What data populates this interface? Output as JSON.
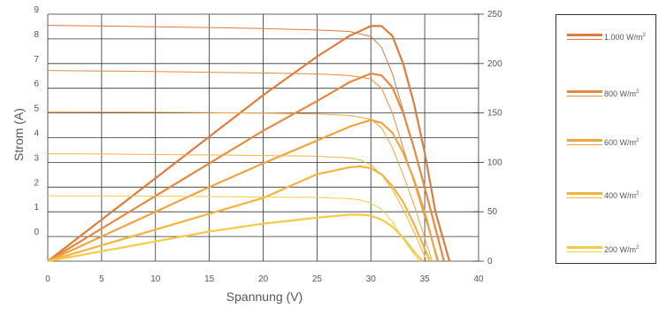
{
  "chart_data": {
    "type": "line",
    "xlabel": "Spannung (V)",
    "ylabel": "Strom (A)",
    "xlim": [
      0,
      40
    ],
    "ylim_left": [
      -1,
      9
    ],
    "ylim_right": [
      0,
      250
    ],
    "x_ticks": [
      "0",
      "5",
      "10",
      "15",
      "20",
      "25",
      "30",
      "35",
      "40"
    ],
    "y_left_ticks": [
      "9",
      "8",
      "7",
      "6",
      "5",
      "4",
      "3",
      "2",
      "1",
      "0"
    ],
    "y_right_ticks": [
      "250",
      "200",
      "150",
      "100",
      "50",
      "0"
    ],
    "grid": true,
    "legend_position": "right",
    "legend_unit_superscript": "2",
    "series": [
      {
        "name": "1.000 W/m",
        "color": "#E07B3A",
        "current_x": [
          0,
          5,
          10,
          15,
          20,
          25,
          28,
          30,
          31,
          32,
          33,
          34,
          35,
          36,
          36.8
        ],
        "current_y": [
          8.55,
          8.52,
          8.49,
          8.46,
          8.42,
          8.36,
          8.3,
          8.1,
          7.65,
          6.6,
          5.1,
          3.6,
          1.9,
          0.3,
          -1
        ],
        "power_x": [
          0,
          5,
          10,
          15,
          20,
          25,
          28,
          30,
          31,
          32,
          33,
          34,
          35,
          36,
          37.3
        ],
        "power_y": [
          0,
          42,
          84,
          126,
          168,
          207,
          228,
          238,
          238,
          228,
          200,
          160,
          110,
          50,
          0
        ]
      },
      {
        "name": "800 W/m",
        "color": "#E8883C",
        "current_x": [
          0,
          5,
          10,
          15,
          20,
          25,
          28,
          30,
          31,
          32,
          33,
          34,
          35,
          36.3
        ],
        "current_y": [
          6.72,
          6.7,
          6.68,
          6.65,
          6.62,
          6.58,
          6.52,
          6.38,
          6.0,
          5.0,
          3.6,
          2.2,
          0.8,
          -1
        ],
        "power_x": [
          0,
          5,
          10,
          15,
          20,
          25,
          28,
          30,
          31,
          32,
          33,
          34,
          35,
          36.8
        ],
        "power_y": [
          0,
          33,
          66,
          99,
          132,
          162,
          181,
          190,
          188,
          176,
          150,
          115,
          75,
          0
        ]
      },
      {
        "name": "600 W/m",
        "color": "#EFA43C",
        "current_x": [
          0,
          5,
          10,
          15,
          20,
          25,
          28,
          30,
          31,
          32,
          33,
          34,
          35.7
        ],
        "current_y": [
          5.05,
          5.04,
          5.03,
          5.01,
          4.99,
          4.96,
          4.9,
          4.75,
          4.4,
          3.6,
          2.5,
          1.3,
          -1
        ],
        "power_x": [
          0,
          5,
          10,
          15,
          20,
          25,
          28,
          30,
          31,
          32,
          33,
          34,
          35,
          36.2
        ],
        "power_y": [
          0,
          25,
          50,
          75,
          99,
          122,
          136,
          143,
          140,
          130,
          110,
          83,
          50,
          0
        ]
      },
      {
        "name": "400 W/m",
        "color": "#F2B53A",
        "current_x": [
          0,
          5,
          10,
          15,
          20,
          25,
          28,
          29,
          30,
          31,
          32,
          33,
          34,
          35.2
        ],
        "current_y": [
          3.35,
          3.34,
          3.32,
          3.3,
          3.28,
          3.25,
          3.18,
          3.1,
          2.9,
          2.5,
          1.9,
          1.1,
          0.2,
          -1
        ],
        "power_x": [
          0,
          5,
          10,
          15,
          20,
          25,
          28,
          29,
          30,
          31,
          32,
          33,
          34,
          35.5
        ],
        "power_y": [
          0,
          16,
          32,
          48,
          64,
          88,
          95,
          96,
          94,
          88,
          76,
          60,
          38,
          0
        ]
      },
      {
        "name": "200 W/m",
        "color": "#F5CB45",
        "current_x": [
          0,
          5,
          10,
          15,
          20,
          25,
          28,
          29,
          30,
          31,
          32,
          33,
          34.5
        ],
        "current_y": [
          1.65,
          1.64,
          1.63,
          1.62,
          1.6,
          1.58,
          1.53,
          1.48,
          1.35,
          1.1,
          0.6,
          -0.1,
          -1
        ],
        "power_x": [
          0,
          5,
          10,
          15,
          20,
          25,
          28,
          29,
          30,
          31,
          32,
          33,
          34,
          34.8
        ],
        "power_y": [
          0,
          10,
          20,
          30,
          38,
          44,
          47,
          47,
          46,
          42,
          35,
          24,
          10,
          0
        ]
      }
    ]
  }
}
